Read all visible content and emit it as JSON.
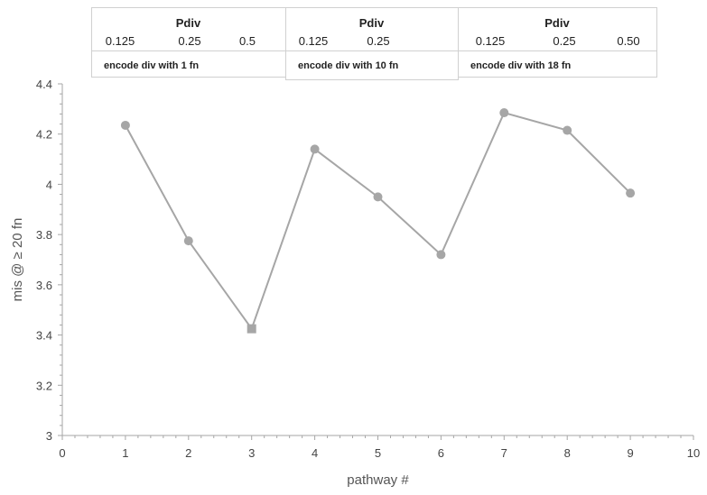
{
  "chart_data": {
    "type": "line",
    "xlabel": "pathway #",
    "ylabel": "mis @ ≥ 20 fn",
    "xlim": [
      0,
      10
    ],
    "ylim": [
      3,
      4.4
    ],
    "x_ticks": [
      "0",
      "1",
      "2",
      "3",
      "4",
      "5",
      "6",
      "7",
      "8",
      "9",
      "10"
    ],
    "y_ticks": [
      "3",
      "3.2",
      "3.4",
      "3.6",
      "3.8",
      "4",
      "4.2",
      "4.4"
    ],
    "grid": false,
    "series": [
      {
        "color": "#a6a6a6",
        "points": [
          {
            "x": 1,
            "y": 4.235,
            "marker": "circle"
          },
          {
            "x": 2,
            "y": 3.775,
            "marker": "circle"
          },
          {
            "x": 3,
            "y": 3.425,
            "marker": "square"
          },
          {
            "x": 4,
            "y": 4.14,
            "marker": "circle"
          },
          {
            "x": 5,
            "y": 3.95,
            "marker": "circle"
          },
          {
            "x": 6,
            "y": 3.72,
            "marker": "circle"
          },
          {
            "x": 7,
            "y": 4.285,
            "marker": "circle"
          },
          {
            "x": 8,
            "y": 4.215,
            "marker": "circle"
          },
          {
            "x": 9,
            "y": 3.965,
            "marker": "circle"
          }
        ]
      }
    ],
    "header_groups": [
      {
        "title": "Pdiv",
        "values": [
          "0.125",
          "0.25",
          "0.5"
        ],
        "description": "encode div with 1 fn"
      },
      {
        "title": "Pdiv",
        "values": [
          "0.125",
          "0.25"
        ],
        "description": "encode div with 10 fn"
      },
      {
        "title": "Pdiv",
        "values": [
          "0.125",
          "0.25",
          "0.50"
        ],
        "description": "encode div with 18 fn"
      }
    ]
  }
}
